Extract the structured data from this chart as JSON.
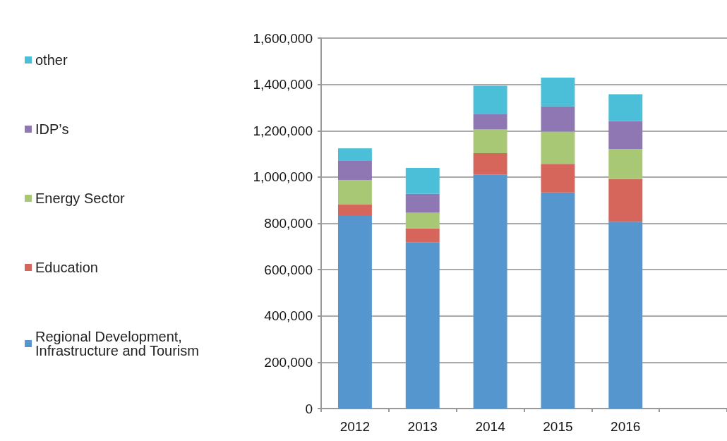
{
  "chart_data": {
    "type": "bar",
    "stacked": true,
    "categories": [
      "2012",
      "2013",
      "2014",
      "2015",
      "2016",
      null
    ],
    "series": [
      {
        "name": "Regional Development, Infrastructure and Tourism",
        "color": "#5596cf",
        "values": [
          832000,
          717000,
          1011000,
          933000,
          807000,
          null
        ]
      },
      {
        "name": "Education",
        "color": "#d6655c",
        "values": [
          49000,
          61000,
          92000,
          124000,
          184000,
          null
        ]
      },
      {
        "name": "Energy Sector",
        "color": "#a9c875",
        "values": [
          106000,
          68000,
          102000,
          139000,
          130000,
          null
        ]
      },
      {
        "name": "IDP’s",
        "color": "#8e77b3",
        "values": [
          83000,
          81000,
          68000,
          109000,
          120000,
          null
        ]
      },
      {
        "name": "other",
        "color": "#4bbfd8",
        "values": [
          54000,
          112000,
          121000,
          124000,
          117000,
          null
        ]
      }
    ],
    "ylim": [
      0,
      1600000
    ],
    "yticks": [
      0,
      {
        "value": 200000,
        "label": "200,000"
      },
      {
        "value": 400000,
        "label": "400,000"
      },
      {
        "value": 600000,
        "label": "600,000"
      },
      {
        "value": 800000,
        "label": "800,000"
      },
      {
        "value": 1000000,
        "label": "1,000,000"
      },
      {
        "value": 1200000,
        "label": "1,200,000"
      },
      {
        "value": 1400000,
        "label": "1,400,000"
      },
      {
        "value": 1600000,
        "label": "1,600,000"
      }
    ],
    "grid": "y",
    "legend": "left"
  }
}
